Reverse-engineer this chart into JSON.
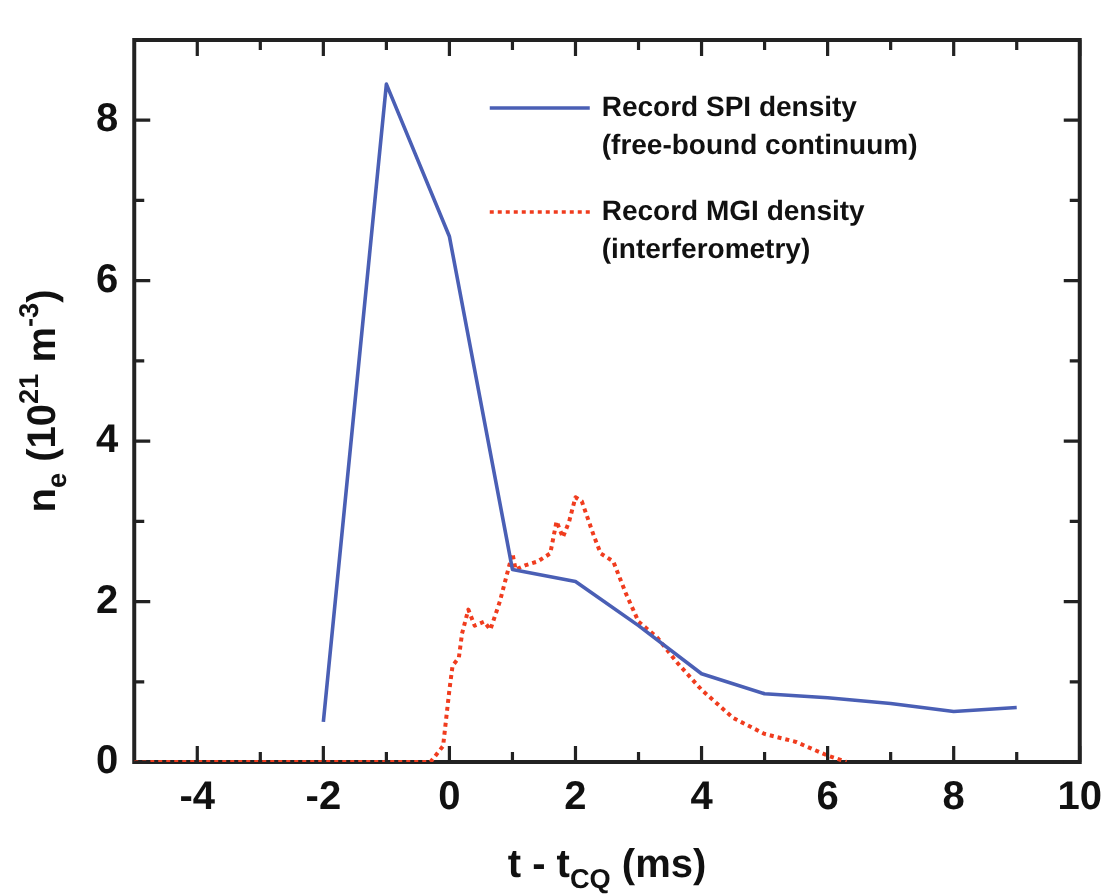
{
  "chart_data": {
    "type": "line",
    "xlabel": "t - t$_{CQ}$ (ms)",
    "ylabel": "n$_{e}$ (10$^{21}$ m$^{-3}$)",
    "xlim": [
      -5,
      10
    ],
    "xticks": [
      {
        "value": -4,
        "label": "-4"
      },
      {
        "value": -3,
        "label": null
      },
      {
        "value": -2,
        "label": "-2"
      },
      {
        "value": -1,
        "label": null
      },
      0,
      {
        "value": 1,
        "label": null
      },
      2,
      {
        "value": 3,
        "label": null
      },
      4,
      {
        "value": 5,
        "label": null
      },
      6,
      {
        "value": 7,
        "label": null
      },
      8,
      {
        "value": 9,
        "label": null
      },
      10
    ],
    "ylim": [
      0,
      9
    ],
    "yticks": [
      0,
      {
        "value": 1,
        "label": null
      },
      2,
      {
        "value": 3,
        "label": null
      },
      4,
      {
        "value": 5,
        "label": null
      },
      6,
      {
        "value": 7,
        "label": null
      },
      8
    ],
    "legend": "top right",
    "marker": "none",
    "series": [
      {
        "name": "Record SPI density\n(free-bound continuum)",
        "color": "#4a5fb5",
        "line_style": "solid",
        "x": [
          -2,
          -1,
          0,
          1,
          2,
          3,
          4,
          5,
          6,
          7,
          8,
          9
        ],
        "values": [
          0.5,
          8.45,
          6.55,
          2.4,
          2.25,
          1.7,
          1.1,
          0.85,
          0.8,
          0.73,
          0.63,
          0.68
        ]
      },
      {
        "name": "Record MGI density\n(interferometry)",
        "color": "#f03c1e",
        "line_style": "dotted",
        "x": [
          -5,
          -0.3,
          -0.1,
          0,
          0.05,
          0.15,
          0.2,
          0.3,
          0.4,
          0.55,
          0.65,
          0.8,
          0.9,
          1.0,
          1.05,
          1.2,
          1.4,
          1.6,
          1.7,
          1.8,
          1.9,
          2.0,
          2.1,
          2.3,
          2.4,
          2.6,
          2.8,
          3.0,
          3.3,
          3.6,
          4,
          4.5,
          5,
          5.5,
          6,
          6.3
        ],
        "values": [
          0,
          0,
          0.2,
          0.9,
          1.2,
          1.3,
          1.6,
          1.9,
          1.7,
          1.75,
          1.65,
          2.0,
          2.3,
          2.6,
          2.4,
          2.45,
          2.5,
          2.6,
          3.0,
          2.8,
          3.0,
          3.3,
          3.25,
          2.8,
          2.6,
          2.5,
          2.1,
          1.75,
          1.55,
          1.25,
          0.9,
          0.55,
          0.35,
          0.25,
          0.08,
          0
        ]
      }
    ]
  }
}
